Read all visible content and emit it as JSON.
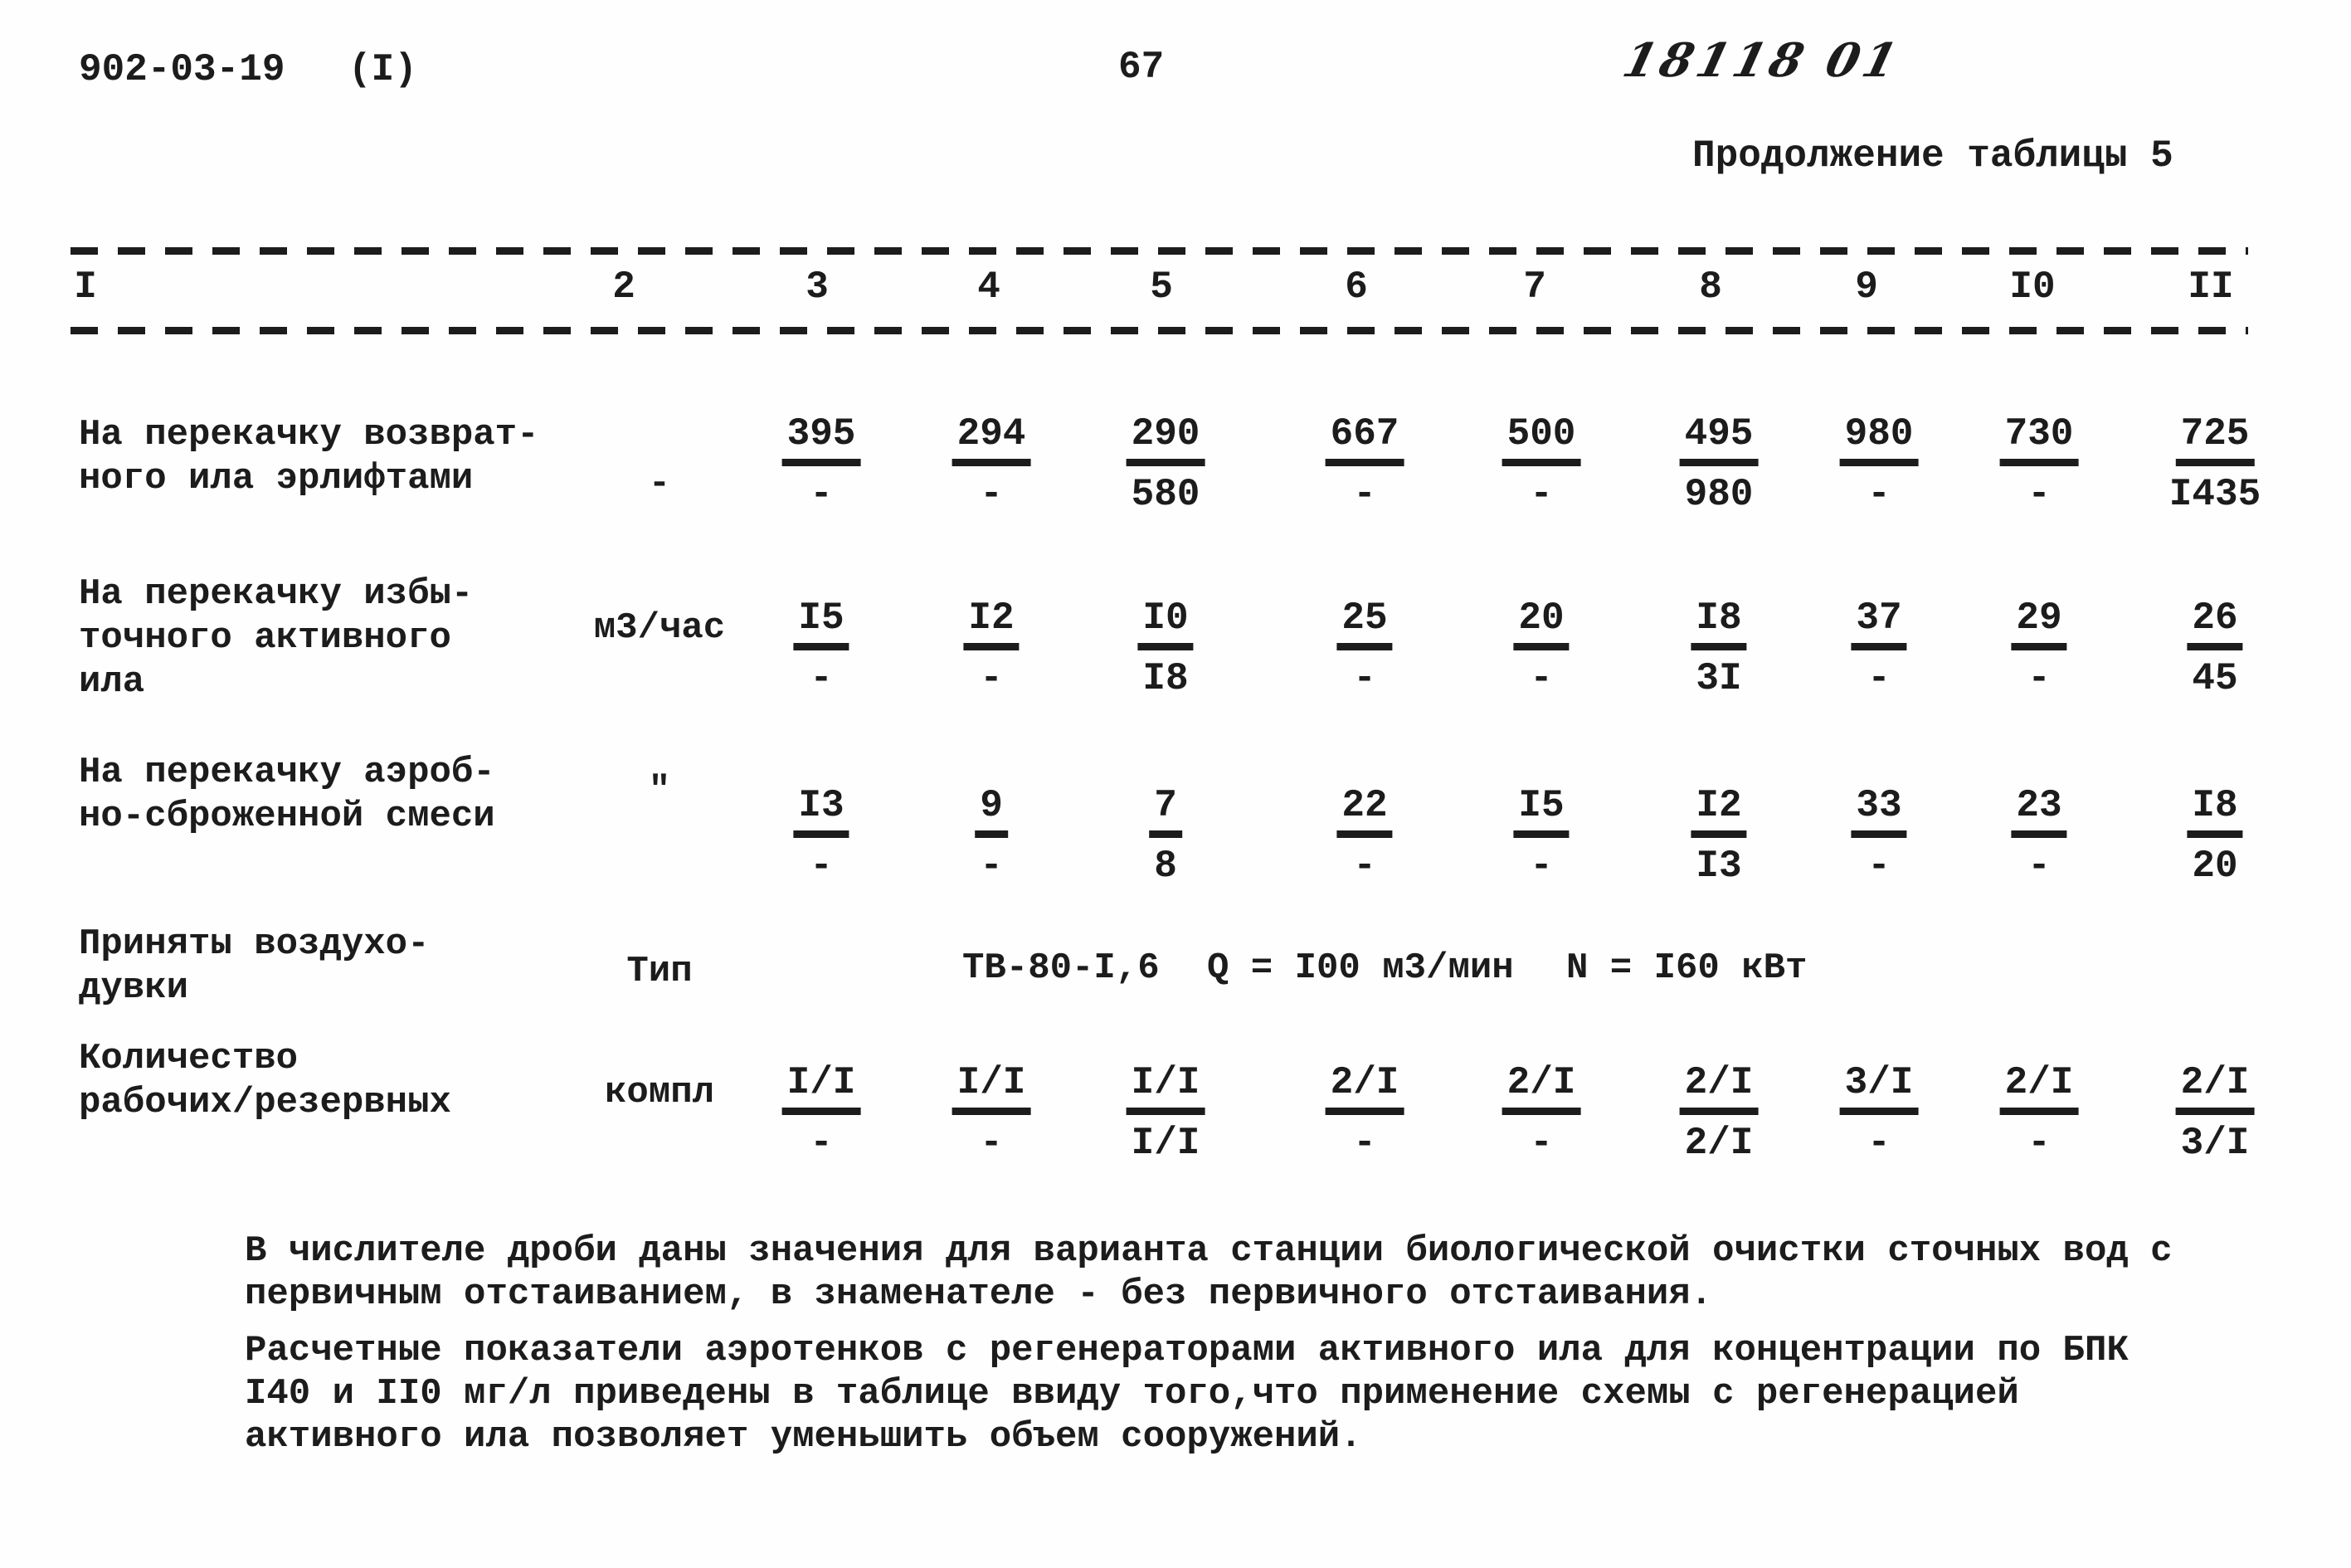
{
  "header": {
    "doc_number": "902-03-19",
    "part_label": "(I)",
    "page_number": "67",
    "handwritten_mark": "18118 01",
    "table_caption": "Продолжение таблицы 5"
  },
  "table": {
    "column_numbers": [
      "I",
      "2",
      "3",
      "4",
      "5",
      "6",
      "7",
      "8",
      "9",
      "I0",
      "II"
    ],
    "rows": [
      {
        "label_lines": [
          "На перекачку возврат-",
          "ного ила эрлифтами"
        ],
        "unit": "-",
        "cells": [
          {
            "top": "395",
            "bottom": "-"
          },
          {
            "top": "294",
            "bottom": "-"
          },
          {
            "top": "290",
            "bottom": "580"
          },
          {
            "top": "667",
            "bottom": "-"
          },
          {
            "top": "500",
            "bottom": "-"
          },
          {
            "top": "495",
            "bottom": "980"
          },
          {
            "top": "980",
            "bottom": "-"
          },
          {
            "top": "730",
            "bottom": "-"
          },
          {
            "top": "725",
            "bottom": "I435"
          }
        ]
      },
      {
        "label_lines": [
          "На перекачку избы-",
          "точного активного",
          "ила"
        ],
        "unit": "м3/час",
        "cells": [
          {
            "top": "I5",
            "bottom": "-"
          },
          {
            "top": "I2",
            "bottom": "-"
          },
          {
            "top": "I0",
            "bottom": "I8"
          },
          {
            "top": "25",
            "bottom": "-"
          },
          {
            "top": "20",
            "bottom": "-"
          },
          {
            "top": "I8",
            "bottom": "3I"
          },
          {
            "top": "37",
            "bottom": "-"
          },
          {
            "top": "29",
            "bottom": "-"
          },
          {
            "top": "26",
            "bottom": "45"
          }
        ]
      },
      {
        "label_lines": [
          "На перекачку аэроб-",
          "но-сброженной смеси"
        ],
        "unit": "\"",
        "cells": [
          {
            "top": "I3",
            "bottom": "-"
          },
          {
            "top": "9",
            "bottom": "-"
          },
          {
            "top": "7",
            "bottom": "8"
          },
          {
            "top": "22",
            "bottom": "-"
          },
          {
            "top": "I5",
            "bottom": "-"
          },
          {
            "top": "I2",
            "bottom": "I3"
          },
          {
            "top": "33",
            "bottom": "-"
          },
          {
            "top": "23",
            "bottom": "-"
          },
          {
            "top": "I8",
            "bottom": "20"
          }
        ]
      }
    ],
    "blowers_row": {
      "label_lines": [
        "Приняты воздухо-",
        "дувки"
      ],
      "unit": "Тип",
      "type_value": "ТВ-80-I,6",
      "flow_value": "Q = I00 м3/мин",
      "power_value": "N = I60 кВт"
    },
    "quantity_row": {
      "label_lines": [
        "Количество",
        "рабочих/резервных"
      ],
      "unit": "компл",
      "cells": [
        {
          "top": "I/I",
          "bottom": "-"
        },
        {
          "top": "I/I",
          "bottom": "-"
        },
        {
          "top": "I/I",
          "bottom": "I/I"
        },
        {
          "top": "2/I",
          "bottom": "-"
        },
        {
          "top": "2/I",
          "bottom": "-"
        },
        {
          "top": "2/I",
          "bottom": "2/I"
        },
        {
          "top": "3/I",
          "bottom": "-"
        },
        {
          "top": "2/I",
          "bottom": "-"
        },
        {
          "top": "2/I",
          "bottom": "3/I"
        }
      ]
    }
  },
  "notes": [
    "В числителе дроби даны значения для варианта станции биологической очистки сточных вод с первичным отстаиванием, в знаменателе - без первичного отстаивания.",
    "Расчетные показатели аэротенков с регенераторами активного ила для концентрации по БПК I40 и II0 мг/л приведены в таблице ввиду того,что применение схемы с регенерацией активного ила позволяет уменьшить объем сооружений."
  ]
}
